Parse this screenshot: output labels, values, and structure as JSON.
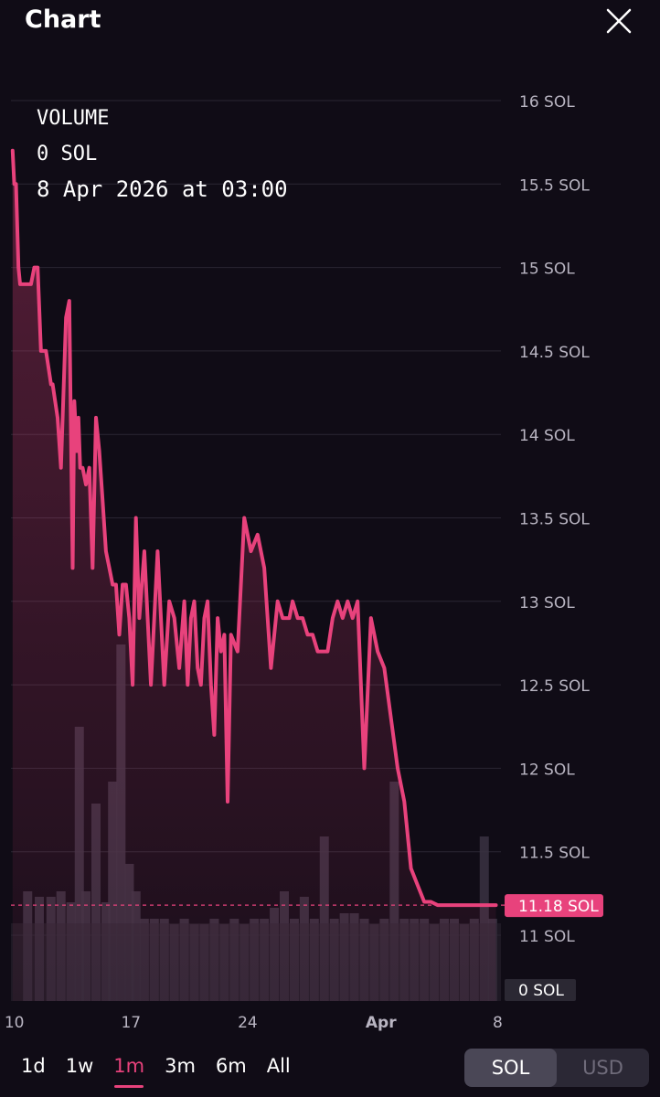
{
  "header": {
    "title": "Chart",
    "close_icon": "close-icon"
  },
  "info": {
    "label": "VOLUME",
    "volume": "0 SOL",
    "timestamp": "8 Apr 2026 at 03:00"
  },
  "colors": {
    "background": "#100c16",
    "line": "#e8427c",
    "grid": "#2a2633",
    "axis_text": "#b9b5c2",
    "price_badge": "#e8427c"
  },
  "range_tabs": [
    {
      "label": "1d",
      "active": false
    },
    {
      "label": "1w",
      "active": false
    },
    {
      "label": "1m",
      "active": true
    },
    {
      "label": "3m",
      "active": false
    },
    {
      "label": "6m",
      "active": false
    },
    {
      "label": "All",
      "active": false
    }
  ],
  "currency": {
    "options": [
      "SOL",
      "USD"
    ],
    "selected": "SOL"
  },
  "chart_data": {
    "type": "area",
    "ylim": [
      10.6,
      16
    ],
    "y_ticks": [
      "16 SOL",
      "15.5 SOL",
      "15 SOL",
      "14.5 SOL",
      "14 SOL",
      "13.5 SOL",
      "13 SOL",
      "12.5 SOL",
      "12 SOL",
      "11.5 SOL",
      "11 SOL"
    ],
    "y_tick_values": [
      16,
      15.5,
      15,
      14.5,
      14,
      13.5,
      13,
      12.5,
      12,
      11.5,
      11
    ],
    "x_ticks": [
      "10",
      "17",
      "24",
      "Apr",
      "8"
    ],
    "x_tick_days": [
      10,
      17,
      24,
      32,
      39
    ],
    "xlim": [
      9.8,
      39.2
    ],
    "current_price": 11.18,
    "current_price_label": "11.18 SOL",
    "volume_label": "0 SOL",
    "grid": true,
    "series": [
      {
        "day": [
          9.9,
          10.0,
          10.1,
          10.25,
          10.35,
          11.0,
          11.2,
          11.4,
          11.6,
          11.9,
          12.2,
          12.3,
          12.6,
          12.8,
          13.1,
          13.3,
          13.5,
          13.6,
          13.75,
          13.85,
          13.95,
          14.1,
          14.3,
          14.5,
          14.7,
          14.9,
          15.1,
          15.3,
          15.5,
          15.7,
          15.9,
          16.1,
          16.3,
          16.5,
          16.7,
          16.9,
          17.1,
          17.3,
          17.5,
          17.8,
          18.2,
          18.6,
          19.0,
          19.3,
          19.6,
          19.9,
          20.2,
          20.4,
          20.6,
          20.8,
          21.0,
          21.2,
          21.4,
          21.6,
          21.8,
          22.0,
          22.2,
          22.4,
          22.6,
          22.8,
          23.0,
          23.4,
          23.8,
          24.2,
          24.6,
          25.0,
          25.4,
          25.8,
          26.1,
          26.3,
          26.5,
          26.7,
          27.0,
          27.3,
          27.6,
          27.9,
          28.2,
          28.5,
          28.8,
          29.1,
          29.4,
          29.7,
          30.0,
          30.3,
          30.6,
          31.0,
          31.4,
          31.8,
          32.2,
          32.6,
          33.0,
          33.4,
          33.8,
          34.2,
          34.6,
          35.0,
          35.4,
          35.8,
          36.2,
          36.5,
          36.8,
          37.0,
          37.2,
          37.4,
          37.6,
          37.8,
          38.0,
          38.2,
          38.4,
          38.6,
          38.9
        ],
        "y": [
          15.7,
          15.5,
          15.5,
          15.0,
          14.9,
          14.9,
          15.0,
          15.0,
          14.5,
          14.5,
          14.3,
          14.3,
          14.1,
          13.8,
          14.7,
          14.8,
          13.2,
          14.2,
          13.9,
          14.1,
          13.8,
          13.8,
          13.7,
          13.8,
          13.2,
          14.1,
          13.9,
          13.6,
          13.3,
          13.2,
          13.1,
          13.1,
          12.8,
          13.1,
          13.1,
          12.9,
          12.5,
          13.5,
          12.9,
          13.3,
          12.5,
          13.3,
          12.5,
          13.0,
          12.9,
          12.6,
          13.0,
          12.5,
          12.9,
          13.0,
          12.6,
          12.5,
          12.9,
          13.0,
          12.5,
          12.2,
          12.9,
          12.7,
          12.8,
          11.8,
          12.8,
          12.7,
          13.5,
          13.3,
          13.4,
          13.2,
          12.6,
          13.0,
          12.9,
          12.9,
          12.9,
          13.0,
          12.9,
          12.9,
          12.8,
          12.8,
          12.7,
          12.7,
          12.7,
          12.9,
          13.0,
          12.9,
          13.0,
          12.9,
          13.0,
          12.0,
          12.9,
          12.7,
          12.6,
          12.3,
          12.0,
          11.8,
          11.4,
          11.3,
          11.2,
          11.2,
          11.18,
          11.18,
          11.18,
          11.18,
          11.18,
          11.18,
          11.18,
          11.18,
          11.18,
          11.18,
          11.18,
          11.18,
          11.18,
          11.18,
          11.18
        ]
      }
    ],
    "volume_series": {
      "day": [
        10.8,
        11.5,
        12.2,
        12.8,
        13.4,
        13.9,
        14.3,
        14.9,
        15.5,
        15.9,
        16.4,
        16.9,
        17.3,
        17.8,
        18.4,
        19.0,
        19.6,
        20.2,
        20.8,
        21.4,
        22.0,
        22.6,
        23.2,
        23.8,
        24.4,
        25.0,
        25.6,
        26.2,
        26.8,
        27.4,
        28.0,
        28.6,
        29.2,
        29.8,
        30.4,
        31.0,
        31.6,
        32.2,
        32.8,
        33.4,
        34.0,
        34.6,
        35.2,
        35.8,
        36.4,
        37.0,
        37.6,
        38.2,
        38.7
      ],
      "values": [
        0.4,
        0.38,
        0.38,
        0.4,
        0.36,
        1.0,
        0.4,
        0.72,
        0.36,
        0.8,
        1.3,
        0.5,
        0.4,
        0.3,
        0.3,
        0.3,
        0.28,
        0.3,
        0.28,
        0.28,
        0.3,
        0.28,
        0.3,
        0.28,
        0.3,
        0.3,
        0.34,
        0.4,
        0.3,
        0.38,
        0.3,
        0.6,
        0.3,
        0.32,
        0.32,
        0.3,
        0.28,
        0.3,
        0.8,
        0.3,
        0.3,
        0.3,
        0.28,
        0.3,
        0.3,
        0.28,
        0.3,
        0.6,
        0.3
      ]
    }
  }
}
